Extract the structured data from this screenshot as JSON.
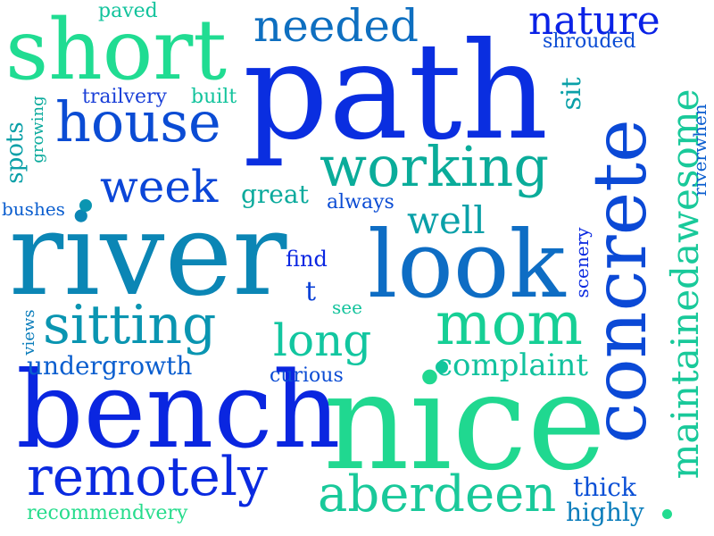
{
  "words": {
    "path": "path",
    "nice": "nice",
    "river": "river",
    "bench": "bench",
    "short": "short",
    "look": "look",
    "concrete": "concrete",
    "house": "house",
    "working": "working",
    "mom": "mom",
    "sitting": "sitting",
    "remotely": "remotely",
    "aberdeen": "aberdeen",
    "maintainedawesome": "maintainedawesome",
    "needed": "needed",
    "nature": "nature",
    "week": "week",
    "long": "long",
    "well": "well",
    "complaint": "complaint",
    "undergrowth": "undergrowth",
    "thick": "thick",
    "highly": "highly",
    "recommendvery": "recommendvery",
    "trailvery": "trailvery",
    "built": "built",
    "paved": "paved",
    "shrouded": "shrouded",
    "sit": "sit",
    "find": "find",
    "t": "t",
    "see": "see",
    "curious": "curious",
    "great": "great",
    "always": "always",
    "bushes": "bushes",
    "spots": "spots",
    "growing": "growing",
    "views": "views",
    "scenery": "scenery",
    "riverwhen": "riverwhen"
  },
  "palette": {
    "deep_blue": "#0a22e6",
    "royal_blue": "#1a3fd8",
    "mid_blue": "#0a63c9",
    "steel_blue": "#1670b8",
    "teal_blue": "#0b86b5",
    "teal": "#07a39c",
    "sea_green": "#12c79a",
    "mint": "#22dc90",
    "light_mint": "#2fe08a"
  }
}
